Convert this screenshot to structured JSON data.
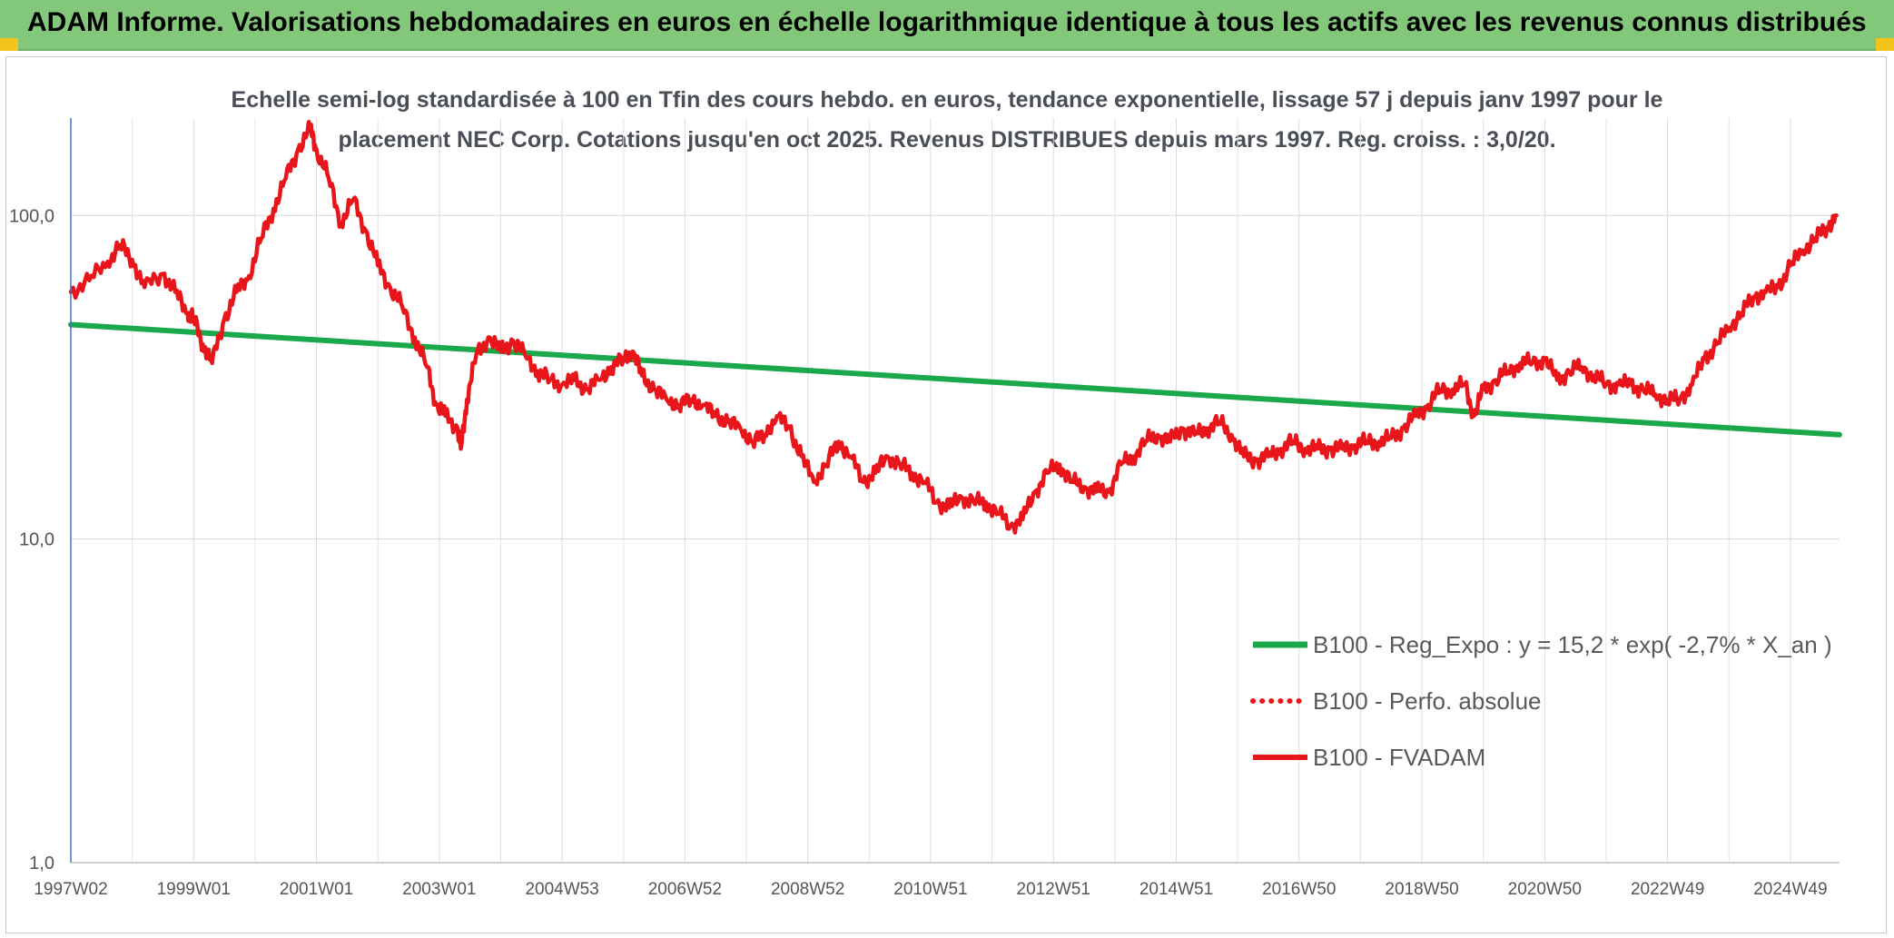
{
  "header": {
    "title": "ADAM Informe. Valorisations hebdomadaires en euros en échelle logarithmique identique à tous les actifs avec les revenus connus distribués"
  },
  "colors": {
    "header_bg": "#82c77a",
    "corner": "#f2c31b",
    "trend": "#1aa84a",
    "price": "#e8161b"
  },
  "chart_data": {
    "type": "line",
    "title_lines": [
      "Echelle semi-log standardisée à 100 en Tfin des cours hebdo. en euros, tendance exponentielle, lissage 57 j depuis janv 1997 pour le",
      "placement NEC Corp. Cotations jusqu'en oct 2025. Revenus DISTRIBUES depuis mars 1997. Reg. croiss. : 3,0/20."
    ],
    "y_scale": "log",
    "ylim": [
      1,
      200
    ],
    "y_ticks": [
      {
        "value": 1,
        "label": "1,0"
      },
      {
        "value": 10,
        "label": "10,0"
      },
      {
        "value": 100,
        "label": "100,0"
      }
    ],
    "xlim": [
      1997.0,
      2025.8
    ],
    "x_ticks": [
      {
        "value": 1997.0,
        "label": "1997W02"
      },
      {
        "value": 1999.0,
        "label": "1999W01"
      },
      {
        "value": 2001.0,
        "label": "2001W01"
      },
      {
        "value": 2003.0,
        "label": "2003W01"
      },
      {
        "value": 2005.0,
        "label": "2004W53"
      },
      {
        "value": 2007.0,
        "label": "2006W52"
      },
      {
        "value": 2009.0,
        "label": "2008W52"
      },
      {
        "value": 2011.0,
        "label": "2010W51"
      },
      {
        "value": 2013.0,
        "label": "2012W51"
      },
      {
        "value": 2015.0,
        "label": "2014W51"
      },
      {
        "value": 2017.0,
        "label": "2016W50"
      },
      {
        "value": 2019.0,
        "label": "2018W50"
      },
      {
        "value": 2021.0,
        "label": "2020W50"
      },
      {
        "value": 2023.0,
        "label": "2022W49"
      },
      {
        "value": 2025.0,
        "label": "2024W49"
      }
    ],
    "grid": {
      "vertical": true,
      "horizontal": true
    },
    "legend_position": "bottom-right",
    "series": [
      {
        "name": "B100 - Reg_Expo : y = 15,2 * exp( -2,7% *  X_an )",
        "style": "solid-thick",
        "color": "#1aa84a",
        "points": [
          [
            1997.0,
            46
          ],
          [
            2025.8,
            21
          ]
        ]
      },
      {
        "name": "B100 - Perfo. absolue",
        "style": "dotted",
        "color": "#e8161b",
        "points": []
      },
      {
        "name": "B100 - FVADAM",
        "style": "solid",
        "color": "#e8161b",
        "points": [
          [
            1997.0,
            58
          ],
          [
            1997.3,
            63
          ],
          [
            1997.6,
            72
          ],
          [
            1997.8,
            81
          ],
          [
            1998.0,
            73
          ],
          [
            1998.2,
            60
          ],
          [
            1998.5,
            66
          ],
          [
            1998.7,
            58
          ],
          [
            1998.9,
            50
          ],
          [
            1999.0,
            48
          ],
          [
            1999.15,
            40
          ],
          [
            1999.3,
            35
          ],
          [
            1999.5,
            48
          ],
          [
            1999.7,
            58
          ],
          [
            1999.9,
            65
          ],
          [
            2000.1,
            85
          ],
          [
            2000.3,
            105
          ],
          [
            2000.5,
            130
          ],
          [
            2000.7,
            160
          ],
          [
            2000.9,
            185
          ],
          [
            2001.0,
            160
          ],
          [
            2001.2,
            130
          ],
          [
            2001.4,
            95
          ],
          [
            2001.6,
            112
          ],
          [
            2001.8,
            90
          ],
          [
            2002.0,
            70
          ],
          [
            2002.2,
            60
          ],
          [
            2002.4,
            52
          ],
          [
            2002.6,
            42
          ],
          [
            2002.8,
            34
          ],
          [
            2002.95,
            26
          ],
          [
            2003.1,
            24
          ],
          [
            2003.3,
            22
          ],
          [
            2003.35,
            19
          ],
          [
            2003.45,
            27
          ],
          [
            2003.6,
            37
          ],
          [
            2003.8,
            42
          ],
          [
            2004.0,
            38
          ],
          [
            2004.2,
            41
          ],
          [
            2004.4,
            37
          ],
          [
            2004.6,
            33
          ],
          [
            2004.8,
            31
          ],
          [
            2005.0,
            30
          ],
          [
            2005.2,
            31
          ],
          [
            2005.4,
            29
          ],
          [
            2005.6,
            31
          ],
          [
            2005.8,
            34
          ],
          [
            2006.0,
            36
          ],
          [
            2006.15,
            38
          ],
          [
            2006.3,
            32
          ],
          [
            2006.5,
            29
          ],
          [
            2006.7,
            27
          ],
          [
            2006.9,
            26
          ],
          [
            2007.1,
            27
          ],
          [
            2007.3,
            26
          ],
          [
            2007.5,
            24
          ],
          [
            2007.7,
            23
          ],
          [
            2007.9,
            22
          ],
          [
            2008.1,
            20
          ],
          [
            2008.3,
            21
          ],
          [
            2008.5,
            24
          ],
          [
            2008.7,
            22
          ],
          [
            2008.9,
            18
          ],
          [
            2009.1,
            15
          ],
          [
            2009.3,
            17
          ],
          [
            2009.5,
            20
          ],
          [
            2009.7,
            18
          ],
          [
            2009.9,
            15
          ],
          [
            2010.1,
            16
          ],
          [
            2010.3,
            18
          ],
          [
            2010.5,
            17
          ],
          [
            2010.7,
            16
          ],
          [
            2010.9,
            15
          ],
          [
            2011.1,
            13
          ],
          [
            2011.3,
            12.5
          ],
          [
            2011.5,
            13.5
          ],
          [
            2011.7,
            13
          ],
          [
            2011.9,
            13
          ],
          [
            2012.1,
            12
          ],
          [
            2012.3,
            11
          ],
          [
            2012.5,
            11.5
          ],
          [
            2012.7,
            14
          ],
          [
            2012.9,
            16
          ],
          [
            2013.1,
            17
          ],
          [
            2013.3,
            15
          ],
          [
            2013.5,
            14.5
          ],
          [
            2013.7,
            14
          ],
          [
            2013.9,
            14
          ],
          [
            2014.1,
            17
          ],
          [
            2014.3,
            18
          ],
          [
            2014.5,
            20
          ],
          [
            2014.7,
            21
          ],
          [
            2014.9,
            20
          ],
          [
            2015.1,
            22
          ],
          [
            2015.3,
            21
          ],
          [
            2015.5,
            22
          ],
          [
            2015.7,
            23
          ],
          [
            2015.9,
            21
          ],
          [
            2016.1,
            18
          ],
          [
            2016.3,
            17.5
          ],
          [
            2016.5,
            18
          ],
          [
            2016.7,
            19
          ],
          [
            2016.9,
            20
          ],
          [
            2017.1,
            19
          ],
          [
            2017.3,
            19
          ],
          [
            2017.5,
            19
          ],
          [
            2017.7,
            19
          ],
          [
            2017.9,
            19.5
          ],
          [
            2018.1,
            20
          ],
          [
            2018.3,
            20
          ],
          [
            2018.5,
            20.5
          ],
          [
            2018.7,
            22
          ],
          [
            2018.9,
            24
          ],
          [
            2019.1,
            26
          ],
          [
            2019.3,
            29
          ],
          [
            2019.5,
            29
          ],
          [
            2019.7,
            30
          ],
          [
            2019.85,
            24
          ],
          [
            2020.0,
            29
          ],
          [
            2020.2,
            31
          ],
          [
            2020.4,
            33
          ],
          [
            2020.6,
            35
          ],
          [
            2020.8,
            35
          ],
          [
            2021.0,
            36
          ],
          [
            2021.2,
            31
          ],
          [
            2021.4,
            33
          ],
          [
            2021.6,
            34
          ],
          [
            2021.8,
            32
          ],
          [
            2022.0,
            30
          ],
          [
            2022.2,
            30
          ],
          [
            2022.4,
            30
          ],
          [
            2022.6,
            29
          ],
          [
            2022.8,
            28
          ],
          [
            2023.0,
            27
          ],
          [
            2023.2,
            27
          ],
          [
            2023.4,
            30
          ],
          [
            2023.6,
            36
          ],
          [
            2023.8,
            40
          ],
          [
            2024.0,
            45
          ],
          [
            2024.2,
            50
          ],
          [
            2024.4,
            56
          ],
          [
            2024.6,
            58
          ],
          [
            2024.8,
            60
          ],
          [
            2025.0,
            70
          ],
          [
            2025.2,
            78
          ],
          [
            2025.4,
            85
          ],
          [
            2025.6,
            92
          ],
          [
            2025.75,
            100
          ]
        ]
      }
    ]
  }
}
